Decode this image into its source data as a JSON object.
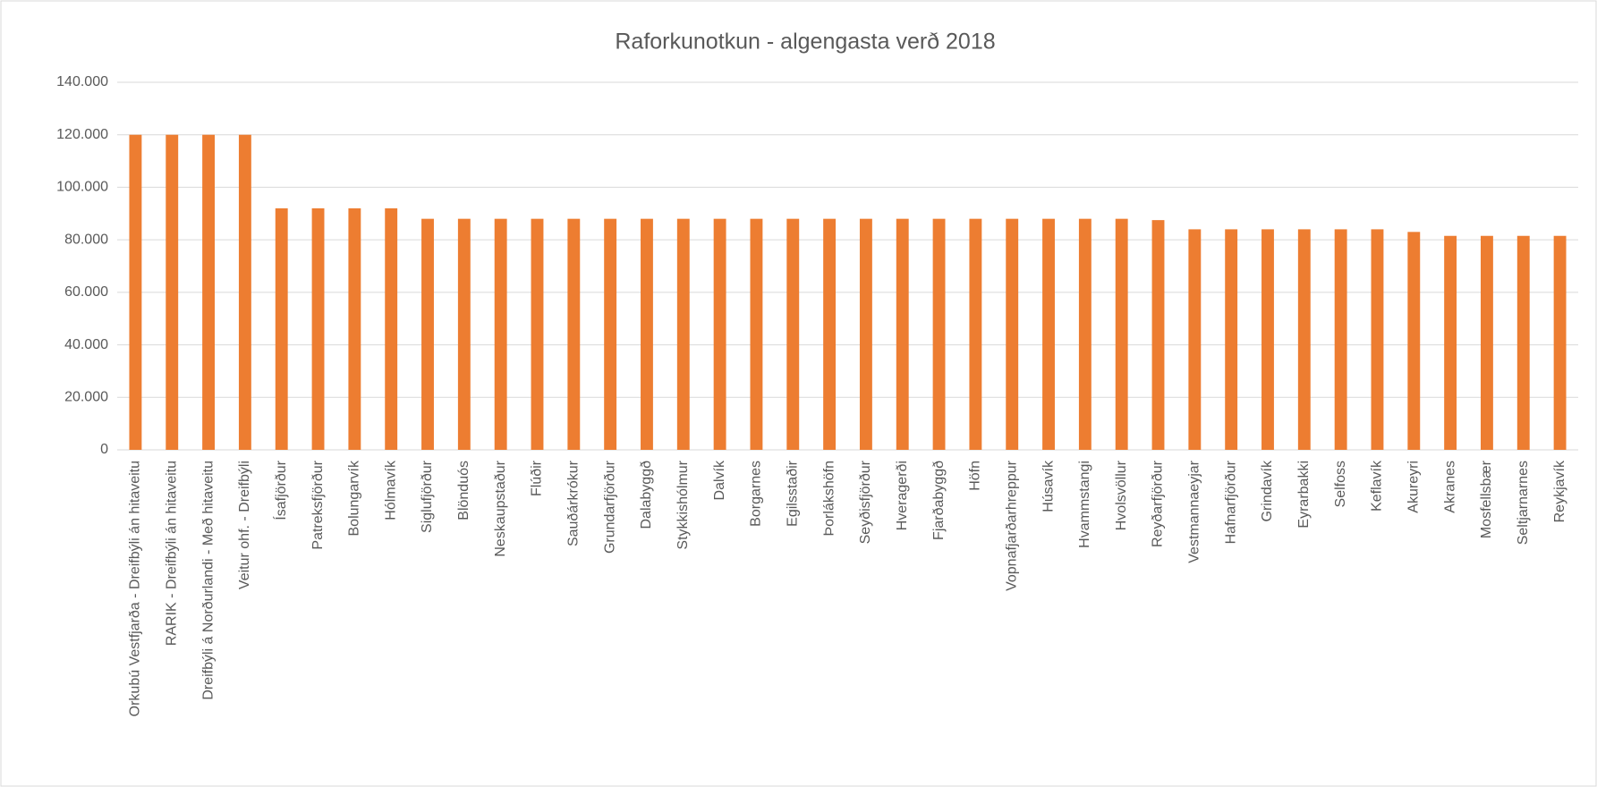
{
  "chart_data": {
    "type": "bar",
    "title": "Raforkunotkun - algengasta verð 2018",
    "categories": [
      "Orkubú Vestfjarða - Dreifbýli án hitaveitu",
      "RARIK - Dreifbýli án hitaveitu",
      "Dreifbýli á Norðurlandi - Með hitaveitu",
      "Veitur ohf. - Dreifbýli",
      "Ísafjörður",
      "Patreksfjörður",
      "Bolungarvík",
      "Hólmavík",
      "Siglufjörður",
      "Blönduós",
      "Neskaupstaður",
      "Flúðir",
      "Sauðárkrókur",
      "Grundarfjörður",
      "Dalabyggð",
      "Stykkishólmur",
      "Dalvík",
      "Borgarnes",
      "Egilsstaðir",
      "Þorlákshöfn",
      "Seyðisfjörður",
      "Hveragerði",
      "Fjarðabyggð",
      "Höfn",
      "Vopnafjarðarhreppur",
      "Húsavík",
      "Hvammstangi",
      "Hvolsvöllur",
      "Reyðarfjörður",
      "Vestmannaeyjar",
      "Hafnarfjörður",
      "Grindavík",
      "Eyrarbakki",
      "Selfoss",
      "Keflavík",
      "Akureyri",
      "Akranes",
      "Mosfellsbær",
      "Seltjarnarnes",
      "Reykjavík"
    ],
    "values": [
      120000,
      120000,
      120000,
      120000,
      92000,
      92000,
      92000,
      92000,
      88000,
      88000,
      88000,
      88000,
      88000,
      88000,
      88000,
      88000,
      88000,
      88000,
      88000,
      88000,
      88000,
      88000,
      88000,
      88000,
      88000,
      88000,
      88000,
      88000,
      87500,
      84000,
      84000,
      84000,
      84000,
      84000,
      84000,
      83000,
      81500,
      81500,
      81500,
      81500
    ],
    "color": "#ed7d31",
    "ylim": [
      0,
      140000
    ],
    "yticks": [
      0,
      {
        "value": 20000,
        "label": "20.000"
      },
      {
        "value": 40000,
        "label": "40.000"
      },
      {
        "value": 60000,
        "label": "60.000"
      },
      {
        "value": 80000,
        "label": "80.000"
      },
      {
        "value": 100000,
        "label": "100.000"
      },
      {
        "value": 120000,
        "label": "120.000"
      },
      {
        "value": 140000,
        "label": "140.000"
      }
    ],
    "grid": true
  }
}
